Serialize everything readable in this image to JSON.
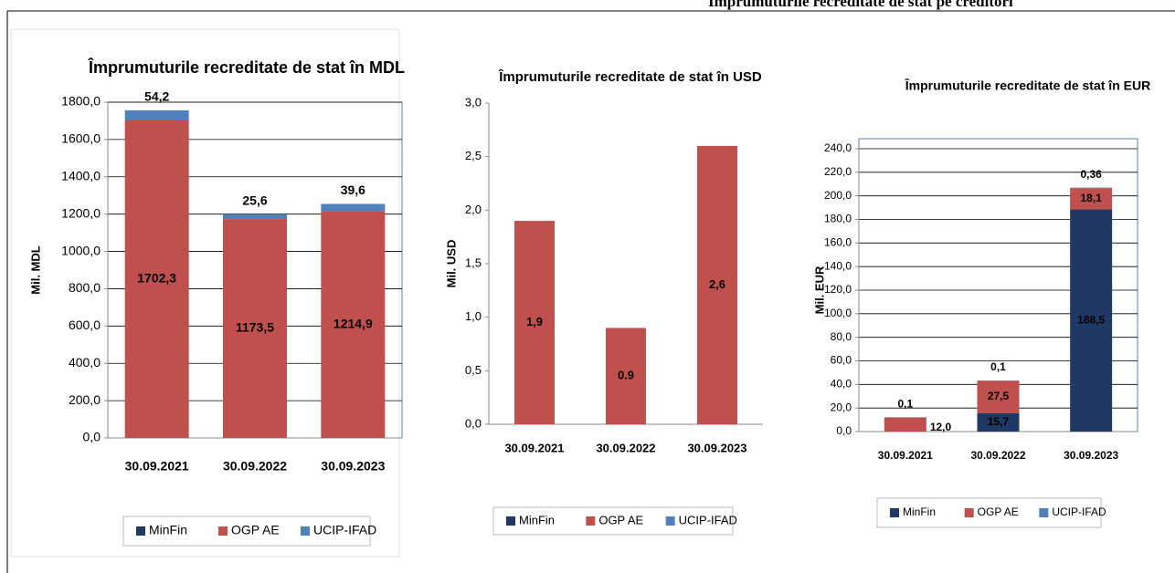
{
  "header": {
    "title": "Împrumuturile recreditate de stat pe creditori"
  },
  "chart_data": [
    {
      "type": "bar",
      "stacked": true,
      "title": "Împrumuturile recreditate de stat în MDL",
      "ylabel": "Mil. MDL",
      "categories": [
        "30.09.2021",
        "30.09.2022",
        "30.09.2023"
      ],
      "series": [
        {
          "name": "MinFin",
          "color": "#1f3864",
          "values": [
            0,
            0,
            0
          ]
        },
        {
          "name": "OGP AE",
          "color": "#c0504d",
          "values": [
            1702.3,
            1173.5,
            1214.9
          ],
          "value_labels": [
            "1702,3",
            "1173,5",
            "1214,9"
          ]
        },
        {
          "name": "UCIP-IFAD",
          "color": "#4f81bd",
          "values": [
            54.2,
            25.6,
            39.6
          ],
          "value_labels": [
            "54,2",
            "25,6",
            "39,6"
          ]
        }
      ],
      "ylim": [
        0,
        1800
      ],
      "yticks": [
        {
          "value": 0,
          "label": "0,0"
        },
        {
          "value": 200,
          "label": "200,0"
        },
        {
          "value": 400,
          "label": "400,0"
        },
        {
          "value": 600,
          "label": "600,0"
        },
        {
          "value": 800,
          "label": "800,0"
        },
        {
          "value": 1000,
          "label": "1000,0"
        },
        {
          "value": 1200,
          "label": "1200,0"
        },
        {
          "value": 1400,
          "label": "1400,0"
        },
        {
          "value": 1600,
          "label": "1600,0"
        },
        {
          "value": 1800,
          "label": "1800,0"
        }
      ],
      "grid": true,
      "legend": "bottom"
    },
    {
      "type": "bar",
      "stacked": true,
      "title": "Împrumuturile recreditate de stat în USD",
      "ylabel": "Mil. USD",
      "categories": [
        "30.09.2021",
        "30.09.2022",
        "30.09.2023"
      ],
      "series": [
        {
          "name": "MinFin",
          "color": "#1f3864",
          "values": [
            0,
            0,
            0
          ]
        },
        {
          "name": "OGP AE",
          "color": "#c0504d",
          "values": [
            1.9,
            0.9,
            2.6
          ],
          "value_labels": [
            "1,9",
            "0.9",
            "2,6"
          ]
        },
        {
          "name": "UCIP-IFAD",
          "color": "#4f81bd",
          "values": [
            0,
            0,
            0
          ]
        }
      ],
      "ylim": [
        0,
        3
      ],
      "yticks": [
        {
          "value": 0,
          "label": "0,0"
        },
        {
          "value": 0.5,
          "label": "0,5"
        },
        {
          "value": 1,
          "label": "1,0"
        },
        {
          "value": 1.5,
          "label": "1,5"
        },
        {
          "value": 2,
          "label": "2,0"
        },
        {
          "value": 2.5,
          "label": "2,5"
        },
        {
          "value": 3,
          "label": "3,0"
        }
      ],
      "grid": false,
      "legend": "bottom"
    },
    {
      "type": "bar",
      "stacked": true,
      "title": "Împrumuturile recreditate de stat în EUR",
      "ylabel": "Mil. EUR",
      "categories": [
        "30.09.2021",
        "30.09.2022",
        "30.09.2023"
      ],
      "series": [
        {
          "name": "MinFin",
          "color": "#1f3864",
          "values": [
            0,
            15.7,
            188.5
          ],
          "value_labels": [
            null,
            "15,7",
            "188,5"
          ]
        },
        {
          "name": "OGP AE",
          "color": "#c0504d",
          "values": [
            12.0,
            27.5,
            18.1
          ],
          "value_labels": [
            "12,0",
            "27,5",
            "18,1"
          ]
        },
        {
          "name": "UCIP-IFAD",
          "color": "#4f81bd",
          "values": [
            0.1,
            0.1,
            0.36
          ],
          "value_labels": [
            "0,1",
            "0,1",
            "0,36"
          ]
        }
      ],
      "ylim": [
        0,
        240
      ],
      "yticks": [
        {
          "value": 0,
          "label": "0,0"
        },
        {
          "value": 20,
          "label": "20,0"
        },
        {
          "value": 40,
          "label": "40,0"
        },
        {
          "value": 60,
          "label": "60,0"
        },
        {
          "value": 80,
          "label": "80,0"
        },
        {
          "value": 100,
          "label": "100,0"
        },
        {
          "value": 120,
          "label": "120,0"
        },
        {
          "value": 140,
          "label": "140,0"
        },
        {
          "value": 160,
          "label": "160,0"
        },
        {
          "value": 180,
          "label": "180,0"
        },
        {
          "value": 200,
          "label": "200,0"
        },
        {
          "value": 220,
          "label": "220,0"
        },
        {
          "value": 240,
          "label": "240,0"
        }
      ],
      "grid": true,
      "legend": "bottom"
    }
  ]
}
